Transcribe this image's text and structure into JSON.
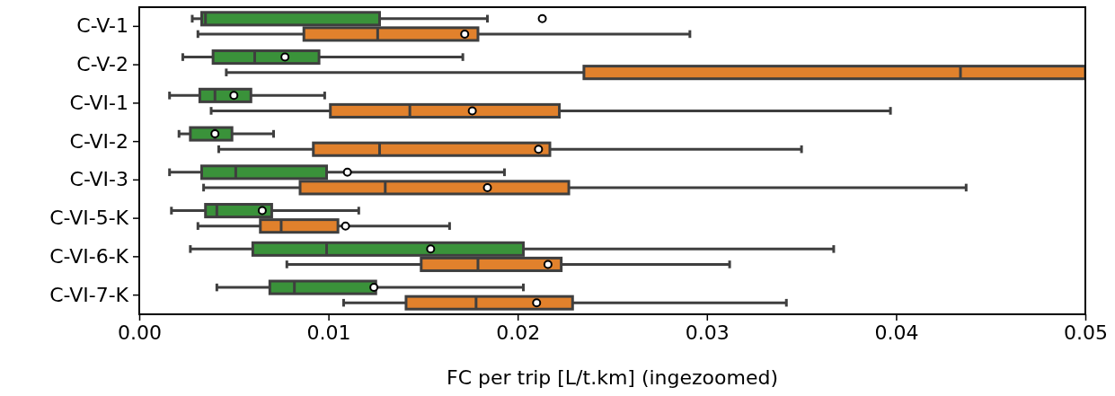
{
  "chart_data": {
    "type": "box",
    "orientation": "horizontal",
    "xlabel": "FC per trip [L/t.km] (ingezoomed)",
    "categories": [
      "C-V-1",
      "C-V-2",
      "C-VI-1",
      "C-VI-2",
      "C-VI-3",
      "C-VI-5-K",
      "C-VI-6-K",
      "C-VI-7-K"
    ],
    "xlim": [
      0,
      0.05
    ],
    "xticks": [
      {
        "value": 0,
        "label": "0.00"
      },
      {
        "value": 0.01,
        "label": "0.01"
      },
      {
        "value": 0.02,
        "label": "0.02"
      },
      {
        "value": 0.03,
        "label": "0.03"
      },
      {
        "value": 0.04,
        "label": "0.04"
      },
      {
        "value": 0.05,
        "label": "0.05"
      }
    ],
    "grid": false,
    "series": [
      {
        "color": "#3a923a",
        "boxes": [
          {
            "low": 0.0028,
            "q1": 0.0033,
            "median": 0.0035,
            "q3": 0.0127,
            "high": 0.0184,
            "mean": 0.0213
          },
          {
            "low": 0.0023,
            "q1": 0.0039,
            "median": 0.0061,
            "q3": 0.0095,
            "high": 0.0171,
            "mean": 0.0077
          },
          {
            "low": 0.0016,
            "q1": 0.0032,
            "median": 0.004,
            "q3": 0.0059,
            "high": 0.0098,
            "mean": 0.005
          },
          {
            "low": 0.0021,
            "q1": 0.0027,
            "median": 0.004,
            "q3": 0.0049,
            "high": 0.0071,
            "mean": 0.004
          },
          {
            "low": 0.0016,
            "q1": 0.0033,
            "median": 0.0051,
            "q3": 0.0099,
            "high": 0.0193,
            "mean": 0.011
          },
          {
            "low": 0.0017,
            "q1": 0.0035,
            "median": 0.0041,
            "q3": 0.007,
            "high": 0.0116,
            "mean": 0.0065
          },
          {
            "low": 0.0027,
            "q1": 0.006,
            "median": 0.0099,
            "q3": 0.0203,
            "high": 0.0367,
            "mean": 0.0154
          },
          {
            "low": 0.0041,
            "q1": 0.0069,
            "median": 0.0082,
            "q3": 0.0125,
            "high": 0.0203,
            "mean": 0.0124
          }
        ]
      },
      {
        "color": "#e1812c",
        "boxes": [
          {
            "low": 0.0031,
            "q1": 0.0087,
            "median": 0.0126,
            "q3": 0.0179,
            "high": 0.0291,
            "mean": 0.0172
          },
          {
            "low": 0.0046,
            "q1": 0.0235,
            "median": 0.0434,
            "q3": 0.05,
            "high": null
          },
          {
            "low": 0.0038,
            "q1": 0.0101,
            "median": 0.0143,
            "q3": 0.0222,
            "high": 0.0397,
            "mean": 0.0176
          },
          {
            "low": 0.0042,
            "q1": 0.0092,
            "median": 0.0127,
            "q3": 0.0217,
            "high": 0.035,
            "mean": 0.0211
          },
          {
            "low": 0.0034,
            "q1": 0.0085,
            "median": 0.013,
            "q3": 0.0227,
            "high": 0.0437,
            "mean": 0.0184
          },
          {
            "low": 0.0031,
            "q1": 0.0064,
            "median": 0.0075,
            "q3": 0.0105,
            "high": 0.0164,
            "mean": 0.0109
          },
          {
            "low": 0.0078,
            "q1": 0.0149,
            "median": 0.0179,
            "q3": 0.0223,
            "high": 0.0312,
            "mean": 0.0216
          },
          {
            "low": 0.0108,
            "q1": 0.0141,
            "median": 0.0178,
            "q3": 0.0229,
            "high": 0.0342,
            "mean": 0.021
          }
        ]
      }
    ]
  }
}
